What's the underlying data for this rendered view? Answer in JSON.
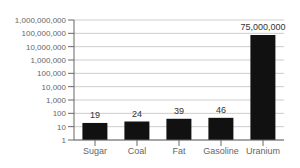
{
  "chart_data": {
    "type": "bar",
    "categories": [
      "Sugar",
      "Coal",
      "Fat",
      "Gasoline",
      "Uranium"
    ],
    "values": [
      19,
      24,
      39,
      46,
      75000000
    ],
    "value_labels": [
      "19",
      "24",
      "39",
      "46",
      "75,000,000"
    ],
    "data_labels": true,
    "color": "#111111",
    "log": "y",
    "ylim": [
      1,
      1000000000
    ],
    "yticks": [
      1,
      10,
      100,
      {
        "value": 1000,
        "label": "1,000"
      },
      {
        "value": 10000,
        "label": "10,000"
      },
      {
        "value": 100000,
        "label": "100,000"
      },
      {
        "value": 1000000,
        "label": "1,000,000"
      },
      {
        "value": 10000000,
        "label": "10,000,000"
      },
      {
        "value": 100000000,
        "label": "100,000,000"
      },
      {
        "value": 1000000000,
        "label": "1,000,000,000"
      }
    ],
    "grid": true
  }
}
